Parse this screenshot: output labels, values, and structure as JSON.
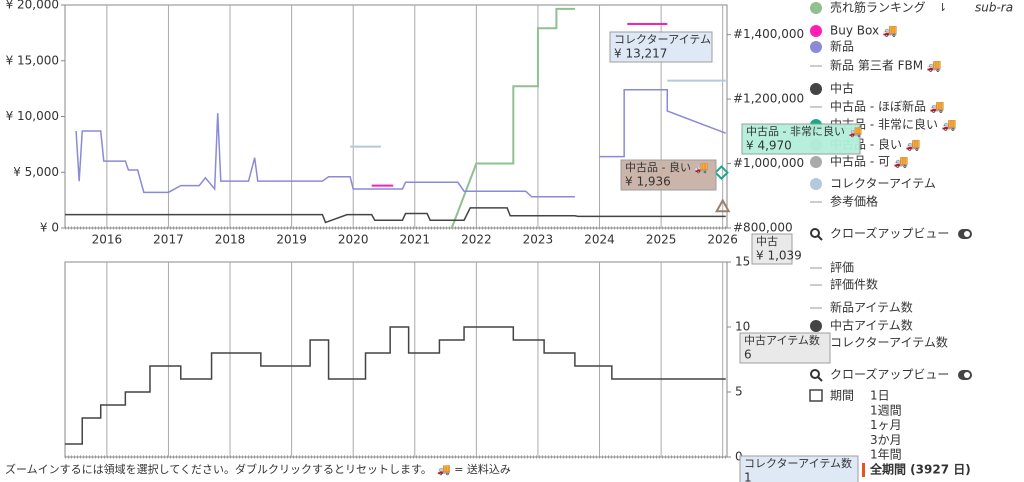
{
  "chart_data": [
    {
      "type": "line",
      "xlim": [
        2015.32,
        2026.07
      ],
      "xticks": [
        2016,
        2017,
        2018,
        2019,
        2020,
        2021,
        2022,
        2023,
        2024,
        2025,
        2026
      ],
      "ylim": [
        0,
        20000
      ],
      "yticks": [
        {
          "value": 0,
          "label": "¥ 0"
        },
        {
          "value": 5000,
          "label": "¥ 5,000"
        },
        {
          "value": 10000,
          "label": "¥ 10,000"
        },
        {
          "value": 15000,
          "label": "¥ 15,000"
        },
        {
          "value": 20000,
          "label": "¥ 20,000"
        }
      ],
      "y2lim": [
        800000,
        1492000
      ],
      "y2ticks": [
        {
          "value": 800000,
          "label": "#800,000"
        },
        {
          "value": 1000000,
          "label": "#1,000,000"
        },
        {
          "value": 1200000,
          "label": "#1,200,000"
        },
        {
          "value": 1400000,
          "label": "#1,400,000"
        }
      ],
      "grid": true,
      "series": [
        {
          "name": "コレクターアイテム",
          "color": "#b4c8e0",
          "width": 2,
          "x": [
            2019.95,
            2020.45,
            null,
            2025.1,
            2026.05
          ],
          "values": [
            7300,
            7300,
            null,
            13217,
            13217
          ]
        },
        {
          "name": "売れ筋ランキング",
          "color": "#8fc08f",
          "axis": "y2",
          "width": 2,
          "x": [
            2021.6,
            2022.0,
            2022.6,
            2022.6,
            2023.0,
            2023.0,
            2023.3,
            2023.3,
            2023.6
          ],
          "values": [
            800000,
            1000000,
            1000000,
            1240000,
            1240000,
            1420000,
            1420000,
            1480000,
            1480000
          ]
        },
        {
          "name": "新品",
          "color": "#8a8ad8",
          "width": 1.5,
          "x": [
            2015.5,
            2015.55,
            2015.6,
            2015.9,
            2015.95,
            2016.3,
            2016.35,
            2016.5,
            2016.6,
            2017.0,
            2017.2,
            2017.5,
            2017.6,
            2017.75,
            2017.8,
            2017.85,
            2018.3,
            2018.4,
            2018.45,
            2019.5,
            2019.6,
            2019.95,
            2020.0,
            2020.8,
            2020.85,
            2021.7,
            2021.8,
            2022.8,
            2022.9,
            2023.6,
            null,
            2024.0,
            2024.4,
            2024.4,
            2025.1,
            2025.1,
            2026.05
          ],
          "values": [
            8700,
            4200,
            8700,
            8700,
            6000,
            6000,
            5200,
            5200,
            3200,
            3200,
            3800,
            3800,
            4500,
            3500,
            10300,
            4200,
            4200,
            6300,
            4200,
            4200,
            4600,
            4600,
            3500,
            3500,
            4100,
            4100,
            3300,
            3300,
            2800,
            2800,
            null,
            6400,
            6400,
            12400,
            12400,
            10500,
            8500
          ]
        },
        {
          "name": "Buy Box",
          "color": "#ff1fb4",
          "width": 2,
          "x": [
            2020.3,
            2020.65,
            null,
            2024.45,
            2025.1
          ],
          "values": [
            3800,
            3800,
            null,
            18300,
            18300
          ]
        },
        {
          "name": "中古",
          "color": "#444444",
          "width": 1.5,
          "x": [
            2015.32,
            2019.5,
            2019.55,
            2019.9,
            2020.3,
            2020.35,
            2020.8,
            2020.85,
            2021.2,
            2021.25,
            2021.8,
            2021.9,
            2022.5,
            2022.55,
            2023.6,
            2023.65,
            2026.05
          ],
          "values": [
            1200,
            1200,
            500,
            1200,
            1200,
            700,
            700,
            1300,
            1300,
            700,
            700,
            1800,
            1800,
            1100,
            1100,
            1039,
            1039
          ]
        },
        {
          "name": "中古品 - 非常に良い",
          "color": "#1aa88a",
          "marker": "diamond",
          "x": [
            2025.98
          ],
          "values": [
            4970
          ]
        },
        {
          "name": "中古品 - 良い",
          "color": "#9a8070",
          "marker": "triangle",
          "x": [
            2026.0
          ],
          "values": [
            1936
          ]
        }
      ]
    },
    {
      "type": "line",
      "xlim": [
        2015.32,
        2026.07
      ],
      "ylim": [
        0,
        15
      ],
      "yticks": [
        0,
        5,
        10,
        15
      ],
      "yaxis_side": "right",
      "grid": true,
      "series": [
        {
          "name": "中古アイテム数",
          "color": "#444444",
          "width": 1.5,
          "x": [
            2015.32,
            2015.6,
            2015.6,
            2015.9,
            2015.9,
            2016.3,
            2016.3,
            2016.7,
            2016.7,
            2017.2,
            2017.2,
            2017.7,
            2017.7,
            2018.5,
            2018.5,
            2019.3,
            2019.3,
            2019.6,
            2019.6,
            2020.2,
            2020.2,
            2020.6,
            2020.6,
            2020.9,
            2020.9,
            2021.4,
            2021.4,
            2021.8,
            2021.8,
            2022.6,
            2022.6,
            2023.1,
            2023.1,
            2023.6,
            2023.6,
            2024.2,
            2024.2,
            2026.05
          ],
          "values": [
            1,
            1,
            3,
            3,
            4,
            4,
            5,
            5,
            7,
            7,
            6,
            6,
            8,
            8,
            7,
            7,
            9,
            9,
            6,
            6,
            8,
            8,
            10,
            10,
            8,
            8,
            9,
            9,
            10,
            10,
            9,
            9,
            8,
            8,
            7,
            7,
            6,
            6
          ]
        }
      ]
    }
  ],
  "legend": [
    {
      "label": "売れ筋ランキング",
      "color": "#8fc08f",
      "icon": "dot"
    },
    {
      "label": "Buy Box 🚚",
      "color": "#ff1fb4",
      "icon": "dot"
    },
    {
      "label": "新品",
      "color": "#8a8ad8",
      "icon": "dot"
    },
    {
      "label": "新品 第三者 FBM 🚚",
      "color": "#bbbbbb",
      "icon": "line"
    },
    {
      "label": "中古",
      "color": "#444444",
      "icon": "dot"
    },
    {
      "label": "中古品 - ほぼ新品 🚚",
      "color": "#bbbbbb",
      "icon": "line"
    },
    {
      "label": "中古品 - 非常に良い 🚚",
      "color": "#1aa88a",
      "icon": "dot"
    },
    {
      "label": "中古品 - 良い 🚚",
      "color": "#9a9a9a",
      "icon": "dot"
    },
    {
      "label": "中古品 - 可 🚚",
      "color": "#aaaaaa",
      "icon": "dot"
    },
    {
      "label": "コレクターアイテム",
      "color": "#b4c8e0",
      "icon": "dot"
    },
    {
      "label": "参考価格",
      "color": "#bbbbbb",
      "icon": "line"
    },
    {
      "label": "クローズアップビュー",
      "color": "#333333",
      "icon": "search"
    },
    {
      "label": "評価",
      "color": "#bbbbbb",
      "icon": "line"
    },
    {
      "label": "評価件数",
      "color": "#bbbbbb",
      "icon": "line"
    },
    {
      "label": "新品アイテム数",
      "color": "#bbbbbb",
      "icon": "line"
    },
    {
      "label": "中古アイテム数",
      "color": "#444444",
      "icon": "dot"
    },
    {
      "label": "コレクターアイテム数",
      "color": "#b4c8e0",
      "icon": "dot"
    },
    {
      "label": "クローズアップビュー",
      "color": "#333333",
      "icon": "search"
    }
  ],
  "sub_ranking": "sub-ra",
  "period": {
    "label": "期間",
    "options": [
      "1日",
      "1週間",
      "1ヶ月",
      "3か月",
      "1年間"
    ],
    "selected": "全期間 (3927 日)"
  },
  "tooltips": [
    {
      "title": "コレクターアイテム",
      "text": "¥ 13,217"
    },
    {
      "title": "中古品 - 非常に良い 🚚",
      "text": "¥ 4,970"
    },
    {
      "title": "中古品 - 良い 🚚",
      "text": "¥ 1,936"
    },
    {
      "title": "中古",
      "text": "¥ 1,039"
    },
    {
      "title": "中古アイテム数",
      "text": "6"
    },
    {
      "title": "コレクターアイテム数",
      "text": "1"
    }
  ],
  "footer": {
    "hint": "ズームインするには領域を選択してください。ダブルクリックするとリセットします。",
    "shipping": "🚚 = 送料込み"
  }
}
